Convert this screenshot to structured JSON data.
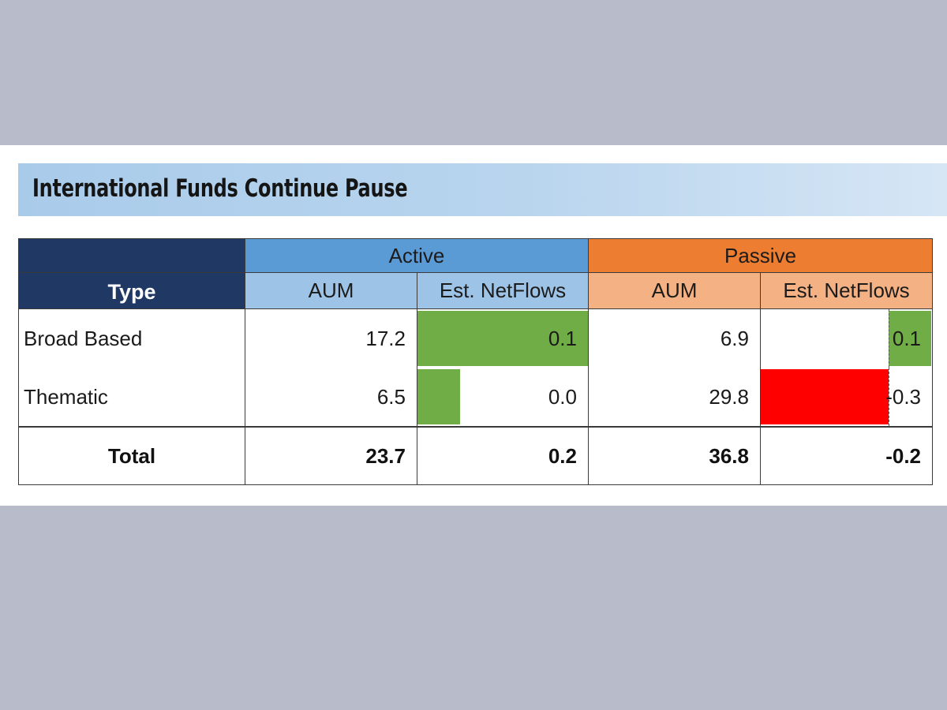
{
  "title": "International Funds Continue Pause",
  "headers": {
    "type_label": "Type",
    "active": "Active",
    "passive": "Passive",
    "aum": "AUM",
    "netflows": "Est. NetFlows"
  },
  "rows": [
    {
      "label": "Broad Based",
      "active_aum": "17.2",
      "active_flows": "0.1",
      "passive_aum": "6.9",
      "passive_flows": "0.1"
    },
    {
      "label": "Thematic",
      "active_aum": "6.5",
      "active_flows": "0.0",
      "passive_aum": "29.8",
      "passive_flows": "-0.3"
    }
  ],
  "total": {
    "label": "Total",
    "active_aum": "23.7",
    "active_flows": "0.2",
    "passive_aum": "36.8",
    "passive_flows": "-0.2"
  },
  "flow_bars": {
    "active": [
      0.1,
      0.0
    ],
    "passive": [
      0.1,
      -0.3
    ],
    "active_bar_scale_max": 0.1,
    "passive_bar_scale": {
      "min": -0.3,
      "max": 0.1
    }
  },
  "colors": {
    "positive_bar": "#70ad47",
    "negative_bar": "#ff0000",
    "type_header": "#1f3864",
    "active_header": "#5b9bd5",
    "active_subheader": "#9dc3e6",
    "passive_header": "#ed7d31",
    "passive_subheader": "#f4b183",
    "title_banner": "#b9d5ee",
    "page_background": "#b8bcca"
  }
}
